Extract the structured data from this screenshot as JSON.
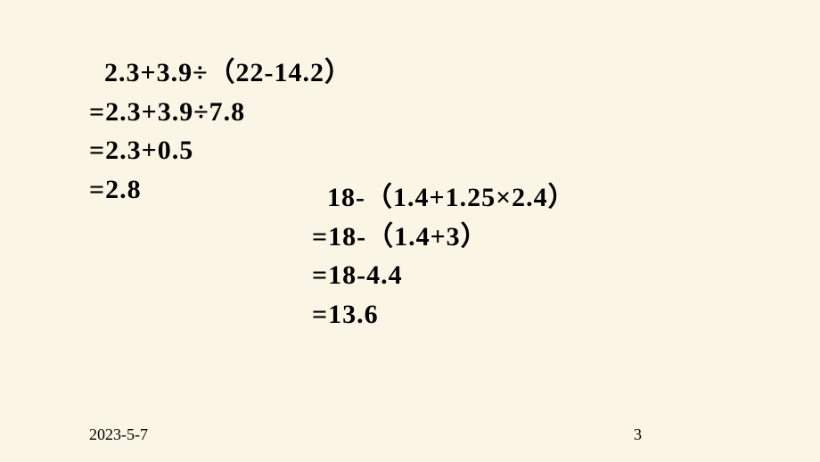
{
  "background_color": "#faf5e4",
  "text_color": "#000000",
  "font_size_main": 30,
  "font_size_footer": 18,
  "font_weight": "bold",
  "problem1": {
    "line1": "  2.3+3.9÷（22-14.2）",
    "line2": "=2.3+3.9÷7.8",
    "line3": "=2.3+0.5",
    "line4": "=2.8"
  },
  "problem2": {
    "line1": "  18-（1.4+1.25×2.4）",
    "line2": "=18-（1.4+3）",
    "line3": "=18-4.4",
    "line4": "=13.6"
  },
  "footer": {
    "date": "2023-5-7",
    "page_number": "3"
  }
}
